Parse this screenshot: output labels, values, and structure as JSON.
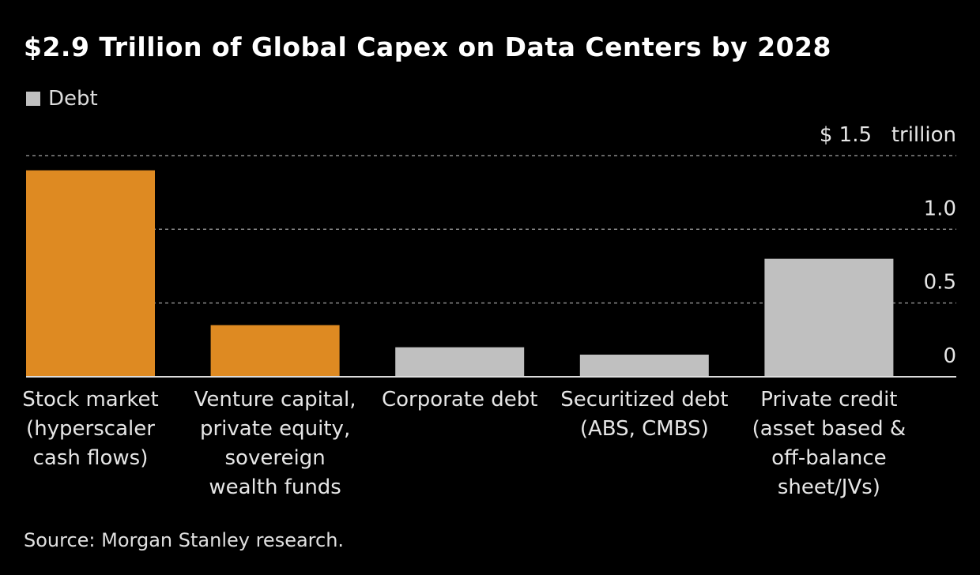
{
  "title": "$2.9 Trillion of Global Capex on Data Centers by 2028",
  "legend": [
    {
      "label": "Debt",
      "color": "#c0c0c0"
    }
  ],
  "source": "Source: Morgan Stanley research.",
  "chart_data": {
    "type": "bar",
    "title": "$2.9 Trillion of Global Capex on Data Centers by 2028",
    "categories": [
      "Stock market\n(hyperscaler\ncash flows)",
      "Venture capital,\nprivate equity,\nsovereign\nwealth funds",
      "Corporate debt",
      "Securitized debt\n(ABS, CMBS)",
      "Private credit\n(asset based &\noff-balance\nsheet/JVs)"
    ],
    "values": [
      1.4,
      0.35,
      0.2,
      0.15,
      0.8
    ],
    "colors": [
      "#de8a22",
      "#de8a22",
      "#c0c0c0",
      "#c0c0c0",
      "#c0c0c0"
    ],
    "is_debt": [
      false,
      false,
      true,
      true,
      true
    ],
    "unit": "trillion",
    "yticks": [
      0,
      0.5,
      1.0,
      1.5
    ],
    "ytick_labels": [
      "0",
      "0.5",
      "1.0",
      "$ 1.5"
    ],
    "ylim": [
      0,
      1.5
    ],
    "y_axis_side": "right",
    "grid": true,
    "legend_position": "top-left",
    "background": "#000000"
  }
}
